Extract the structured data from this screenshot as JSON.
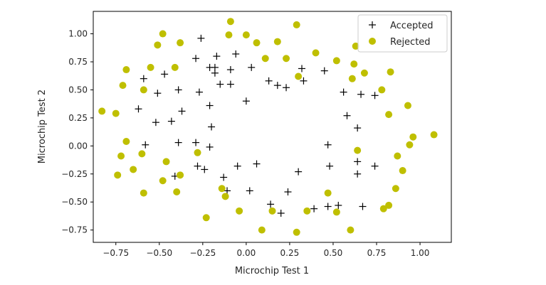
{
  "chart_data": {
    "type": "scatter",
    "xlabel": "Microchip Test 1",
    "ylabel": "Microchip Test 2",
    "xlim": [
      -0.88,
      1.18
    ],
    "ylim": [
      -0.86,
      1.2
    ],
    "xticks": [
      -0.75,
      -0.5,
      -0.25,
      0.0,
      0.25,
      0.5,
      0.75,
      1.0
    ],
    "xtick_labels": [
      "−0.75",
      "−0.50",
      "−0.25",
      "0.00",
      "0.25",
      "0.50",
      "0.75",
      "1.00"
    ],
    "yticks": [
      -0.75,
      -0.5,
      -0.25,
      0.0,
      0.25,
      0.5,
      0.75,
      1.0
    ],
    "ytick_labels": [
      "−0.75",
      "−0.50",
      "−0.25",
      "0.00",
      "0.25",
      "0.50",
      "0.75",
      "1.00"
    ],
    "grid": false,
    "legend_position": "top-right",
    "series": [
      {
        "name": "Accepted",
        "marker": "plus",
        "color": "#000000",
        "points": [
          [
            -0.26,
            0.96
          ],
          [
            -0.29,
            0.78
          ],
          [
            -0.17,
            0.8
          ],
          [
            -0.06,
            0.82
          ],
          [
            -0.21,
            0.7
          ],
          [
            -0.18,
            0.65
          ],
          [
            -0.18,
            0.7
          ],
          [
            -0.09,
            0.68
          ],
          [
            -0.47,
            0.64
          ],
          [
            -0.59,
            0.6
          ],
          [
            -0.51,
            0.47
          ],
          [
            -0.39,
            0.5
          ],
          [
            -0.27,
            0.48
          ],
          [
            -0.15,
            0.55
          ],
          [
            -0.09,
            0.55
          ],
          [
            0.03,
            0.7
          ],
          [
            0.13,
            0.58
          ],
          [
            0.18,
            0.54
          ],
          [
            0.23,
            0.52
          ],
          [
            0.32,
            0.69
          ],
          [
            0.33,
            0.58
          ],
          [
            0.45,
            0.67
          ],
          [
            0.56,
            0.48
          ],
          [
            0.66,
            0.46
          ],
          [
            0.74,
            0.45
          ],
          [
            -0.62,
            0.33
          ],
          [
            -0.37,
            0.31
          ],
          [
            -0.21,
            0.36
          ],
          [
            0.0,
            0.4
          ],
          [
            0.58,
            0.27
          ],
          [
            -0.52,
            0.21
          ],
          [
            -0.43,
            0.22
          ],
          [
            -0.2,
            0.17
          ],
          [
            0.64,
            0.16
          ],
          [
            -0.58,
            0.01
          ],
          [
            -0.39,
            0.03
          ],
          [
            -0.29,
            0.03
          ],
          [
            -0.21,
            -0.01
          ],
          [
            0.47,
            0.01
          ],
          [
            0.64,
            -0.14
          ],
          [
            -0.28,
            -0.18
          ],
          [
            -0.24,
            -0.21
          ],
          [
            -0.05,
            -0.18
          ],
          [
            0.06,
            -0.16
          ],
          [
            0.3,
            -0.23
          ],
          [
            0.48,
            -0.18
          ],
          [
            0.64,
            -0.25
          ],
          [
            0.74,
            -0.18
          ],
          [
            -0.41,
            -0.27
          ],
          [
            -0.13,
            -0.28
          ],
          [
            -0.11,
            -0.4
          ],
          [
            0.02,
            -0.4
          ],
          [
            0.24,
            -0.41
          ],
          [
            0.14,
            -0.52
          ],
          [
            0.2,
            -0.6
          ],
          [
            0.39,
            -0.56
          ],
          [
            0.47,
            -0.54
          ],
          [
            0.53,
            -0.53
          ],
          [
            0.67,
            -0.54
          ]
        ]
      },
      {
        "name": "Rejected",
        "marker": "circle",
        "color": "#bfbf00",
        "points": [
          [
            -0.09,
            1.11
          ],
          [
            -0.48,
            1.0
          ],
          [
            -0.1,
            0.99
          ],
          [
            0.0,
            0.99
          ],
          [
            0.06,
            0.92
          ],
          [
            -0.51,
            0.9
          ],
          [
            -0.38,
            0.92
          ],
          [
            0.18,
            0.93
          ],
          [
            0.29,
            1.08
          ],
          [
            0.63,
            0.89
          ],
          [
            -0.55,
            0.7
          ],
          [
            -0.41,
            0.7
          ],
          [
            0.11,
            0.78
          ],
          [
            0.23,
            0.78
          ],
          [
            0.4,
            0.83
          ],
          [
            0.52,
            0.76
          ],
          [
            0.62,
            0.73
          ],
          [
            -0.69,
            0.68
          ],
          [
            0.68,
            0.65
          ],
          [
            0.83,
            0.66
          ],
          [
            0.3,
            0.62
          ],
          [
            0.61,
            0.6
          ],
          [
            -0.71,
            0.54
          ],
          [
            -0.59,
            0.5
          ],
          [
            0.78,
            0.5
          ],
          [
            -0.83,
            0.31
          ],
          [
            -0.75,
            0.29
          ],
          [
            0.82,
            0.28
          ],
          [
            0.93,
            0.36
          ],
          [
            -0.69,
            0.04
          ],
          [
            0.96,
            0.08
          ],
          [
            0.94,
            0.01
          ],
          [
            1.08,
            0.1
          ],
          [
            -0.72,
            -0.09
          ],
          [
            -0.6,
            -0.07
          ],
          [
            -0.46,
            -0.14
          ],
          [
            -0.28,
            -0.06
          ],
          [
            0.64,
            -0.04
          ],
          [
            0.87,
            -0.09
          ],
          [
            -0.74,
            -0.26
          ],
          [
            -0.65,
            -0.21
          ],
          [
            -0.38,
            -0.26
          ],
          [
            -0.48,
            -0.31
          ],
          [
            0.9,
            -0.22
          ],
          [
            -0.59,
            -0.42
          ],
          [
            -0.4,
            -0.41
          ],
          [
            -0.14,
            -0.38
          ],
          [
            -0.12,
            -0.45
          ],
          [
            0.47,
            -0.42
          ],
          [
            0.86,
            -0.38
          ],
          [
            -0.04,
            -0.58
          ],
          [
            0.15,
            -0.58
          ],
          [
            0.35,
            -0.58
          ],
          [
            0.52,
            -0.59
          ],
          [
            0.79,
            -0.56
          ],
          [
            0.82,
            -0.53
          ],
          [
            -0.23,
            -0.64
          ],
          [
            0.09,
            -0.75
          ],
          [
            0.29,
            -0.77
          ],
          [
            0.6,
            -0.75
          ]
        ]
      }
    ]
  }
}
